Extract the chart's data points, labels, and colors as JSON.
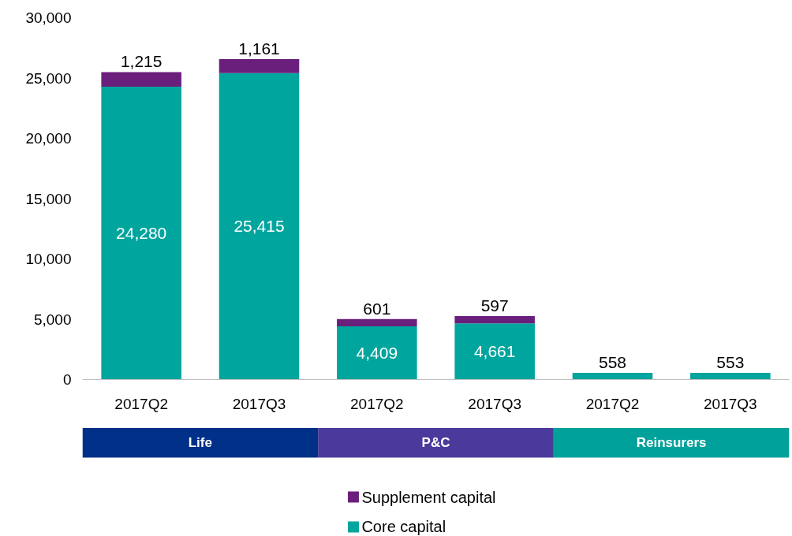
{
  "chart_data": {
    "type": "bar",
    "stacked": true,
    "categories": [
      "2017Q2",
      "2017Q3",
      "2017Q2",
      "2017Q3",
      "2017Q2",
      "2017Q3"
    ],
    "series": [
      {
        "name": "Core capital",
        "color": "#00a59e",
        "values": [
          24280,
          25415,
          4409,
          4661,
          558,
          553
        ],
        "value_labels": [
          "24,280",
          "25,415",
          "4,409",
          "4,661",
          "558",
          "553"
        ]
      },
      {
        "name": "Supplement capital",
        "color": "#6b1f7c",
        "values": [
          1215,
          1161,
          601,
          597,
          null,
          null
        ],
        "value_labels": [
          "1,215",
          "1,161",
          "601",
          "597",
          null,
          null
        ]
      }
    ],
    "ylim": [
      0,
      30000
    ],
    "yticks": [
      {
        "value": 0,
        "label": "0"
      },
      {
        "value": 5000,
        "label": "5,000"
      },
      {
        "value": 10000,
        "label": "10,000"
      },
      {
        "value": 15000,
        "label": "15,000"
      },
      {
        "value": 20000,
        "label": "20,000"
      },
      {
        "value": 25000,
        "label": "25,000"
      },
      {
        "value": 30000,
        "label": "30,000"
      }
    ],
    "annotations": [
      "Life",
      "P&C",
      "Reinsurers"
    ],
    "grid": false,
    "legend": "bottom"
  }
}
